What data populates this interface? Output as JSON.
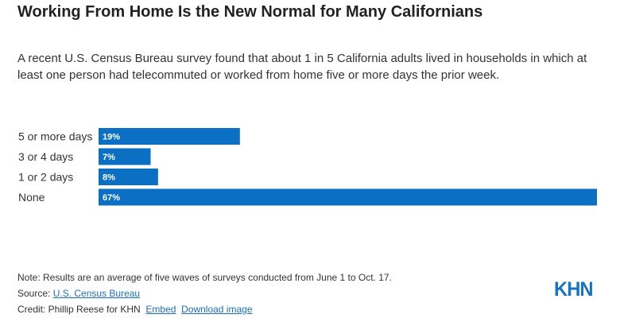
{
  "chart_data": {
    "type": "bar",
    "orientation": "horizontal",
    "title": "Working From Home Is the New Normal for Many Californians",
    "subtitle": "A recent U.S. Census Bureau survey found that about 1 in 5 California adults lived in households in which at least one person had telecommuted or worked from home five or more days the prior week.",
    "categories": [
      "5 or more days",
      "3 or 4 days",
      "1 or 2 days",
      "None"
    ],
    "values": [
      19,
      7,
      8,
      67
    ],
    "value_labels": [
      "19%",
      "7%",
      "8%",
      "67%"
    ],
    "xlim": [
      0,
      67
    ],
    "bar_color": "#0b6fc4",
    "grid": false,
    "legend": "none"
  },
  "footer": {
    "note": "Note: Results are an average of five waves of surveys conducted from June 1 to Oct. 17.",
    "source_prefix": "Source: ",
    "source_link": "U.S. Census Bureau",
    "credit_prefix": "Credit: Phillip Reese for KHN",
    "embed_link": "Embed",
    "download_link": "Download image"
  },
  "logo": {
    "text": "KHN",
    "color": "#1673c8"
  }
}
